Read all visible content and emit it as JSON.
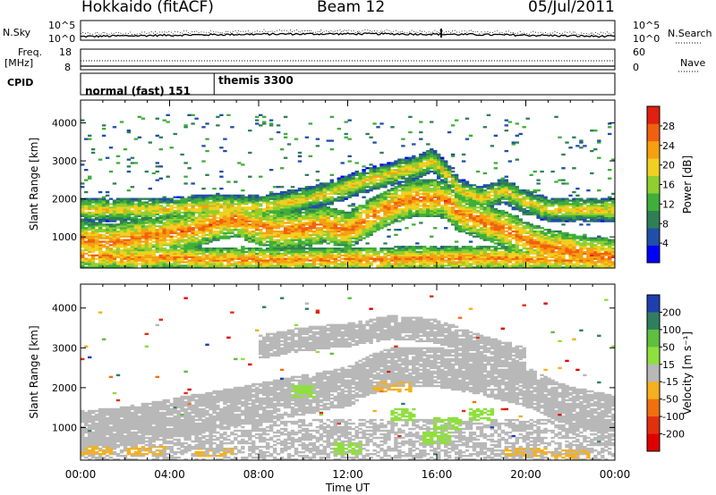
{
  "header": {
    "station": "Hokkaido (fitACF)",
    "beam": "Beam 12",
    "date": "05/Jul/2011"
  },
  "top_panels": {
    "nsky_label": "N.Sky",
    "nsky_left_ticks": [
      "10^5",
      "10^0"
    ],
    "nsky_right_ticks": [
      "10^5",
      "10^0"
    ],
    "nsearch_label": "N.Search",
    "freq_label_line1": "Freq.",
    "freq_label_line2": "[MHz]",
    "freq_left_ticks": [
      "18",
      "8"
    ],
    "freq_right_ticks": [
      "60",
      "0"
    ],
    "nave_label": "Nave",
    "cpid_label": "CPID",
    "cpid_segments": [
      {
        "start_hour": 0,
        "label": "normal (fast) 151"
      },
      {
        "start_hour": 6,
        "label": "themis 3300"
      }
    ]
  },
  "colors": {
    "axes": "#000000",
    "background": "#ffffff",
    "ground_scatter": "#b8b8b8"
  },
  "chart_data": [
    {
      "type": "heatmap",
      "title": "",
      "xlabel": "",
      "ylabel": "Slant Range [km]",
      "x_unit": "hours UT",
      "xlim": [
        0,
        24
      ],
      "ylim": [
        180,
        4600
      ],
      "x_ticks": [
        0,
        4,
        8,
        12,
        16,
        20,
        24
      ],
      "y_ticks": [
        1000,
        2000,
        3000,
        4000
      ],
      "y_tick_labels": [
        "1000",
        "2000",
        "3000",
        "4000"
      ],
      "colorbar": {
        "label": "Power [dB]",
        "ticks": [
          "4",
          "8",
          "12",
          "16",
          "20",
          "24",
          "28"
        ],
        "tick_values": [
          4,
          8,
          12,
          16,
          20,
          24,
          28
        ],
        "range": [
          0,
          32
        ],
        "colors_low_to_high": [
          "#0000ff",
          "#1f4fa8",
          "#2f7f55",
          "#3fae3a",
          "#8fcf30",
          "#f0d020",
          "#f5a010",
          "#f06010",
          "#e02010"
        ]
      },
      "features": [
        {
          "name": "main echo band",
          "points": [
            [
              0,
              900
            ],
            [
              1.5,
              850
            ],
            [
              3,
              1000
            ],
            [
              5,
              1150
            ],
            [
              6,
              1350
            ],
            [
              7,
              1450
            ],
            [
              8,
              1250
            ],
            [
              9,
              1150
            ],
            [
              10,
              1200
            ],
            [
              11,
              1300
            ],
            [
              12,
              1150
            ],
            [
              13,
              1500
            ],
            [
              14,
              1800
            ],
            [
              15,
              2000
            ],
            [
              16,
              2000
            ],
            [
              16.5,
              1900
            ],
            [
              17,
              1600
            ],
            [
              18,
              1400
            ],
            [
              19,
              1200
            ],
            [
              20,
              900
            ],
            [
              21,
              700
            ],
            [
              22,
              600
            ],
            [
              23,
              500
            ],
            [
              24,
              450
            ]
          ],
          "width_km": 300,
          "power_db": 26
        },
        {
          "name": "upper echo band",
          "points": [
            [
              4,
              1700
            ],
            [
              6,
              1800
            ],
            [
              8,
              1750
            ],
            [
              9.5,
              1900
            ],
            [
              11,
              2100
            ],
            [
              12,
              2300
            ],
            [
              13,
              2500
            ],
            [
              14,
              2650
            ],
            [
              15,
              2800
            ],
            [
              15.8,
              3000
            ],
            [
              16.5,
              2600
            ],
            [
              17,
              2200
            ],
            [
              18,
              2000
            ],
            [
              19,
              2200
            ],
            [
              20,
              1900
            ],
            [
              21,
              1700
            ]
          ],
          "width_km": 200,
          "power_db": 21
        },
        {
          "name": "low range echoes",
          "points": [
            [
              0,
              500
            ],
            [
              2,
              420
            ],
            [
              4,
              450
            ],
            [
              6,
              380
            ],
            [
              10,
              380
            ],
            [
              14,
              400
            ],
            [
              18,
              420
            ],
            [
              22,
              380
            ],
            [
              24,
              350
            ]
          ],
          "width_km": 200,
          "power_db": 25
        }
      ]
    },
    {
      "type": "heatmap",
      "title": "",
      "xlabel": "Time UT",
      "ylabel": "Slant Range [km]",
      "x_unit": "hours UT",
      "xlim": [
        0,
        24
      ],
      "ylim": [
        180,
        4600
      ],
      "x_ticks": [
        0,
        4,
        8,
        12,
        16,
        20,
        24
      ],
      "x_tick_labels": [
        "00:00",
        "04:00",
        "08:00",
        "12:00",
        "16:00",
        "20:00",
        "00:00"
      ],
      "y_ticks": [
        1000,
        2000,
        3000,
        4000
      ],
      "y_tick_labels": [
        "1000",
        "2000",
        "3000",
        "4000"
      ],
      "colorbar": {
        "label": "Velocity [m s⁻¹]",
        "ticks": [
          "200",
          "100",
          "50",
          "15",
          "-15",
          "-50",
          "-100",
          "-200"
        ],
        "tick_values": [
          200,
          100,
          50,
          15,
          -15,
          -50,
          -100,
          -200
        ],
        "colors_high_to_low": [
          "#1f3fb0",
          "#2f7f5f",
          "#5fbf3f",
          "#8fdf3f",
          "#b8b8b8",
          "#f5b020",
          "#f07010",
          "#e03010",
          "#e00000"
        ]
      },
      "ground_scatter_bands": [
        {
          "points": [
            [
              0,
              900
            ],
            [
              2,
              1000
            ],
            [
              4,
              1200
            ],
            [
              6,
              1400
            ],
            [
              8,
              1600
            ],
            [
              10,
              1800
            ],
            [
              12,
              2000
            ],
            [
              13,
              2300
            ],
            [
              14,
              2500
            ],
            [
              16,
              2500
            ],
            [
              18,
              2300
            ],
            [
              20,
              2000
            ],
            [
              22,
              1500
            ],
            [
              24,
              1300
            ]
          ],
          "width_km": 500
        },
        {
          "points": [
            [
              8,
              3000
            ],
            [
              10,
              3200
            ],
            [
              12,
              3300
            ],
            [
              14,
              3500
            ],
            [
              16,
              3400
            ],
            [
              18,
              3000
            ],
            [
              20,
              2700
            ]
          ],
          "width_km": 300
        }
      ],
      "green_patches_hours_km": [
        [
          14.5,
          1300
        ],
        [
          16,
          700
        ],
        [
          16.5,
          1100
        ],
        [
          18,
          1300
        ],
        [
          10,
          1900
        ],
        [
          12,
          450
        ]
      ],
      "orange_patches_hours_km": [
        [
          0.5,
          400
        ],
        [
          3,
          400
        ],
        [
          6,
          350
        ],
        [
          20,
          350
        ],
        [
          22,
          300
        ],
        [
          14,
          2000
        ]
      ]
    }
  ]
}
